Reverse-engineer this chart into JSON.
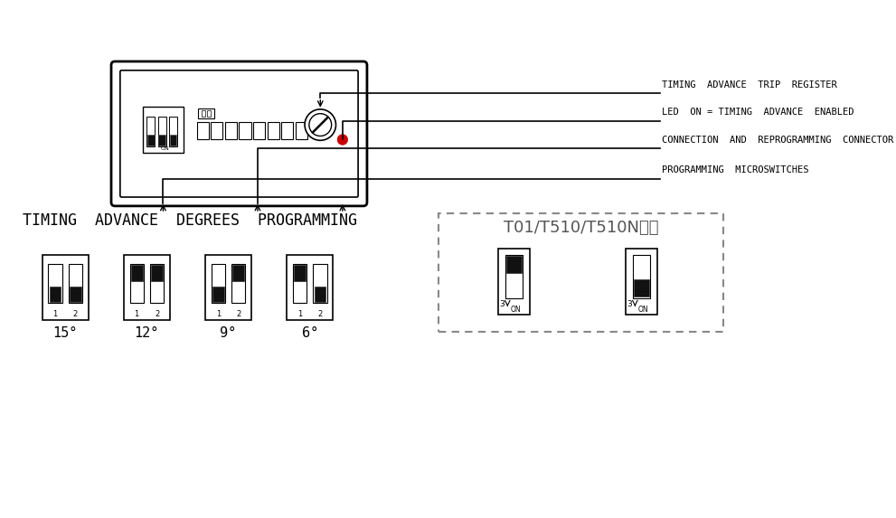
{
  "bg_color": "#ffffff",
  "line_color": "#000000",
  "title_bottom": "TIMING  ADVANCE  DEGREES  PROGRAMMING",
  "dashed_box_label": "T01/T510/T510N适用",
  "annotations": [
    "TIMING  ADVANCE  TRIP  REGISTER",
    "LED  ON = TIMING  ADVANCE  ENABLED",
    "CONNECTION  AND  REPROGRAMMING  CONNECTOR",
    "PROGRAMMING  MICROSWITCHES"
  ],
  "degrees": [
    "15°",
    "12°",
    "9°",
    "6°"
  ],
  "sw_configs": [
    [
      true,
      true
    ],
    [
      false,
      false
    ],
    [
      true,
      false
    ],
    [
      false,
      true
    ]
  ],
  "t510_up": [
    true,
    false
  ]
}
